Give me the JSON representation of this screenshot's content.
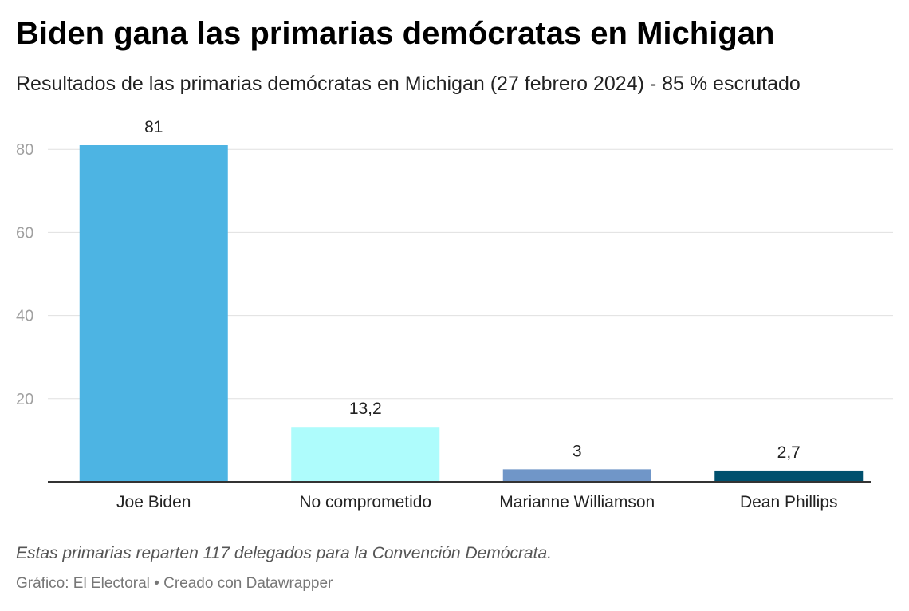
{
  "header": {
    "title": "Biden gana las primarias demócratas en Michigan",
    "subtitle": "Resultados de las primarias demócratas en Michigan (27 febrero 2024) - 85 % escrutado"
  },
  "footer": {
    "note": "Estas primarias reparten 117 delegados para la Convención Demócrata.",
    "credit": "Gráfico: El Electoral • Creado con Datawrapper"
  },
  "chart_data": {
    "type": "bar",
    "categories": [
      "Joe Biden",
      "No comprometido",
      "Marianne Williamson",
      "Dean Phillips"
    ],
    "values": [
      81,
      13.2,
      3,
      2.7
    ],
    "value_labels": [
      "81",
      "13,2",
      "3",
      "2,7"
    ],
    "colors": [
      "#4db4e3",
      "#aefcfc",
      "#7096c8",
      "#00506e"
    ],
    "title": "Biden gana las primarias demócratas en Michigan",
    "subtitle": "Resultados de las primarias demócratas en Michigan (27 febrero 2024) - 85 % escrutado",
    "xlabel": "",
    "ylabel": "",
    "ylim": [
      0,
      81
    ],
    "yticks": [
      20,
      40,
      60,
      80
    ],
    "ytick_labels": [
      "20",
      "40",
      "60",
      "80"
    ],
    "grid": true,
    "legend": "none"
  }
}
